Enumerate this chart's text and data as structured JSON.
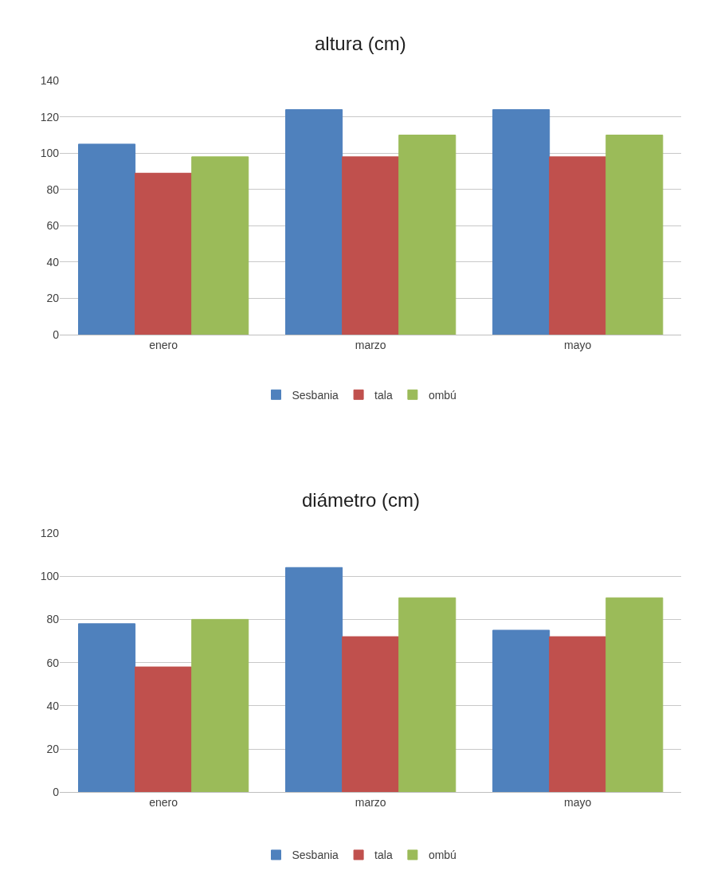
{
  "chart_data": [
    {
      "type": "bar",
      "title": "altura (cm)",
      "categories": [
        "enero",
        "marzo",
        "mayo"
      ],
      "series": [
        {
          "name": "Sesbania",
          "color": "#4f81bd",
          "values": [
            105,
            124,
            124
          ]
        },
        {
          "name": "tala",
          "color": "#c0504d",
          "values": [
            89,
            98,
            98
          ]
        },
        {
          "name": "ombú",
          "color": "#9bbb59",
          "values": [
            98,
            110,
            110
          ]
        }
      ],
      "ylim": [
        0,
        140
      ],
      "yticks": [
        0,
        20,
        40,
        60,
        80,
        100,
        120,
        140
      ],
      "grid": "y",
      "legend": "bottom"
    },
    {
      "type": "bar",
      "title": "diámetro (cm)",
      "categories": [
        "enero",
        "marzo",
        "mayo"
      ],
      "series": [
        {
          "name": "Sesbania",
          "color": "#4f81bd",
          "values": [
            78,
            104,
            75
          ]
        },
        {
          "name": "tala",
          "color": "#c0504d",
          "values": [
            58,
            72,
            72
          ]
        },
        {
          "name": "ombú",
          "color": "#9bbb59",
          "values": [
            80,
            90,
            90
          ]
        }
      ],
      "ylim": [
        0,
        120
      ],
      "yticks": [
        0,
        20,
        40,
        60,
        80,
        100,
        120
      ],
      "grid": "y",
      "legend": "bottom"
    }
  ]
}
